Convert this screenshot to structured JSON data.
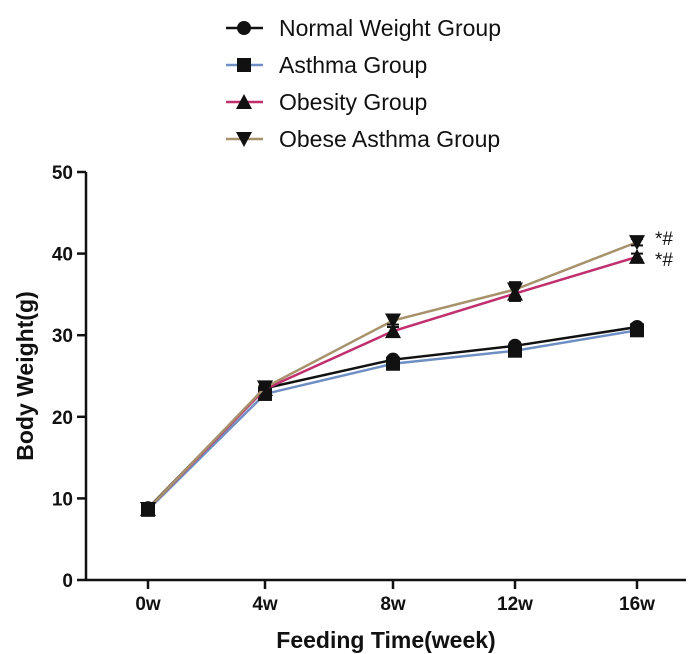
{
  "chart_data": {
    "type": "line",
    "title": "",
    "xlabel": "Feeding Time(week)",
    "ylabel": "Body Weight(g)",
    "categories": [
      "0w",
      "4w",
      "8w",
      "12w",
      "16w"
    ],
    "ylim": [
      0,
      50
    ],
    "yticks": [
      "0",
      "10",
      "20",
      "30",
      "40",
      "50"
    ],
    "grid": false,
    "legend_position": "top-center",
    "series": [
      {
        "name": "Normal Weight Group",
        "marker": "circle",
        "color": "#111111",
        "values": [
          8.8,
          23.5,
          27.0,
          28.7,
          31.0
        ],
        "error": [
          0.3,
          0.3,
          0.3,
          0.4,
          0.4
        ]
      },
      {
        "name": "Asthma Group",
        "marker": "square",
        "color": "#6f8fc4",
        "values": [
          8.6,
          22.8,
          26.5,
          28.1,
          30.6
        ],
        "error": [
          0.3,
          0.3,
          0.3,
          0.3,
          0.4
        ]
      },
      {
        "name": "Obesity Group",
        "marker": "triangle-up",
        "color": "#c0306e",
        "values": [
          8.7,
          23.4,
          30.5,
          35.1,
          39.6
        ],
        "error": [
          0.3,
          0.3,
          0.5,
          0.9,
          0.4
        ]
      },
      {
        "name": "Obese Asthma Group",
        "marker": "triangle-down",
        "color": "#a8926c",
        "values": [
          8.7,
          23.6,
          31.8,
          35.6,
          41.4
        ],
        "error": [
          0.3,
          0.3,
          0.5,
          0.9,
          0.4
        ]
      }
    ],
    "annotations": [
      {
        "text": "*#",
        "category": "16w",
        "y": 41.8
      },
      {
        "text": "*#",
        "category": "16w",
        "y": 39.2
      }
    ]
  }
}
